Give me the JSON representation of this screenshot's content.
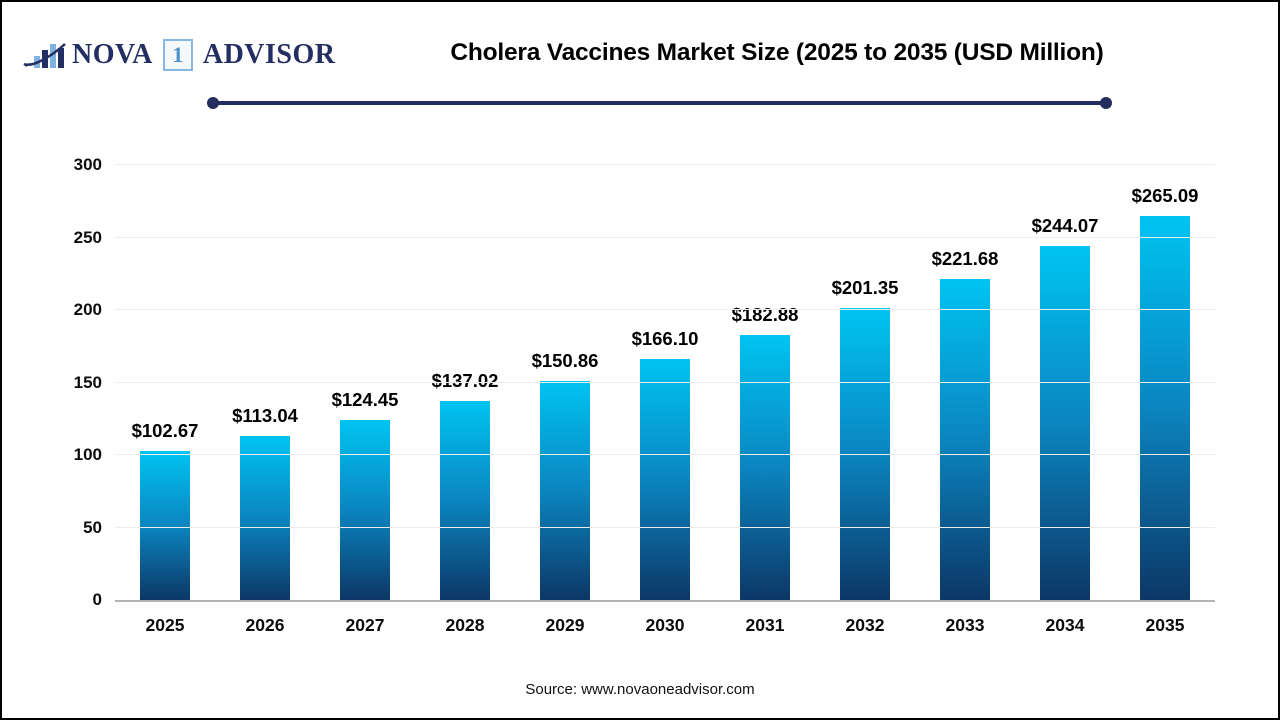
{
  "logo": {
    "nova": "NOVA",
    "one": "1",
    "advisor": "ADVISOR",
    "navy": "#232e63",
    "light_blue": "#7fb2de"
  },
  "header": {
    "title": "Cholera Vaccines Market Size (2025 to 2035 (USD Million)"
  },
  "footer": {
    "source": "Source: www.novaoneadvisor.com"
  },
  "chart_data": {
    "type": "bar",
    "title": "Cholera Vaccines Market Size (2025 to 2035 (USD Million)",
    "categories": [
      "2025",
      "2026",
      "2027",
      "2028",
      "2029",
      "2030",
      "2031",
      "2032",
      "2033",
      "2034",
      "2035"
    ],
    "values": [
      102.67,
      113.04,
      124.45,
      137.02,
      150.86,
      166.1,
      182.88,
      201.35,
      221.68,
      244.07,
      265.09
    ],
    "value_labels": [
      "$102.67",
      "$113.04",
      "$124.45",
      "$137.02",
      "$150.86",
      "$166.10",
      "$182.88",
      "$201.35",
      "$221.68",
      "$244.07",
      "$265.09"
    ],
    "xlabel": "",
    "ylabel": "",
    "ylim": [
      0,
      300
    ],
    "yticks": [
      0,
      50,
      100,
      150,
      200,
      250,
      300
    ],
    "grid": true,
    "legend": "none",
    "bar_gradient_top": "#00c4f2",
    "bar_gradient_bottom": "#0c3766",
    "gridline_color": "#ececec",
    "baseline_color": "#b3b3b3"
  }
}
